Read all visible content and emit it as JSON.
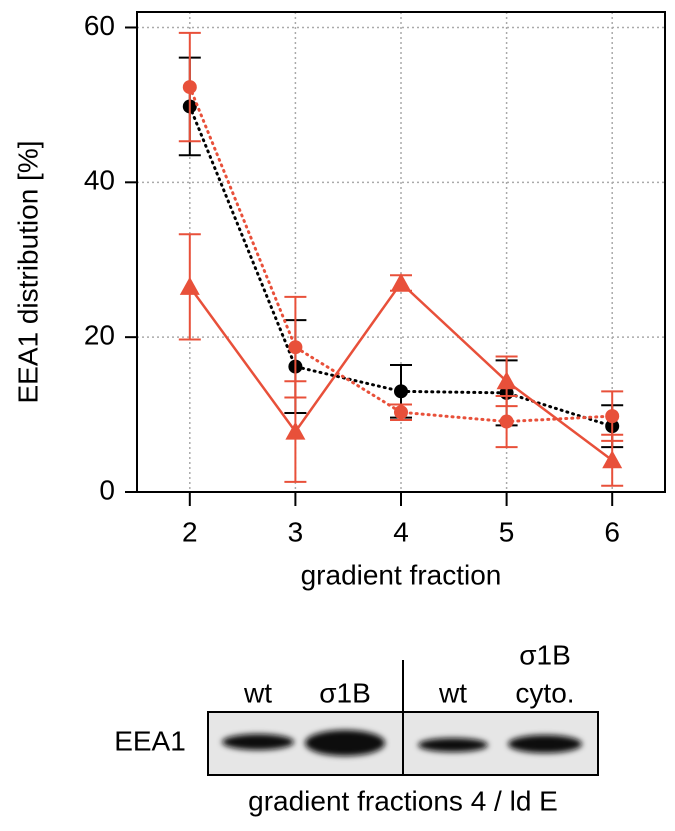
{
  "chart_data": {
    "type": "line",
    "x": [
      2,
      3,
      4,
      5,
      6
    ],
    "series": [
      {
        "color": "#000000",
        "line_style": "dotted",
        "marker": "circle",
        "values": [
          49.8,
          16.2,
          13,
          12.8,
          8.5
        ],
        "errors": [
          6.3,
          6,
          3.4,
          4.2,
          2.7
        ]
      },
      {
        "color": "#e8503a",
        "line_style": "dotted",
        "marker": "circle",
        "values": [
          52.3,
          18.7,
          10.3,
          9.1,
          9.8
        ],
        "errors": [
          7,
          6.5,
          1,
          3.3,
          3.2
        ]
      },
      {
        "color": "#e8503a",
        "line_style": "solid",
        "marker": "triangle",
        "values": [
          26.5,
          7.8,
          27,
          14.3,
          4.1
        ],
        "errors": [
          6.8,
          6.5,
          1,
          3.2,
          3.3
        ]
      }
    ],
    "xlim": [
      1.5,
      6.5
    ],
    "xticks": [
      2,
      3,
      4,
      5,
      6
    ],
    "ylim": [
      0,
      62
    ],
    "yticks": [
      0,
      20,
      40,
      60
    ],
    "grid": true,
    "xlabel": "gradient fraction",
    "ylabel": "EEA1 distribution [%]"
  },
  "blot": {
    "lanes": [
      [
        "wt"
      ],
      [
        "σ1B"
      ],
      [
        "wt"
      ],
      [
        "σ1B",
        "cyto."
      ]
    ],
    "row_label": "EEA1",
    "caption": "gradient fractions 4 / ld E"
  }
}
